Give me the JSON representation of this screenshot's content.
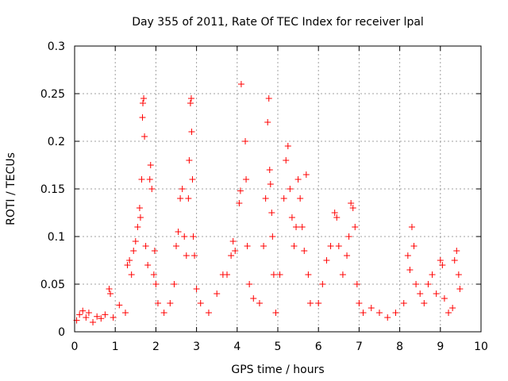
{
  "chart_data": {
    "type": "scatter",
    "title": "Day 355 of 2011, Rate Of TEC Index for receiver lpal",
    "xlabel": "GPS time / hours",
    "ylabel": "ROTI / TECUs",
    "xlim": [
      0,
      10
    ],
    "ylim": [
      0,
      0.3
    ],
    "xticks": [
      "0",
      "1",
      "2",
      "3",
      "4",
      "5",
      "6",
      "7",
      "8",
      "9",
      "10"
    ],
    "yticks": [
      "0",
      "0.05",
      "0.1",
      "0.15",
      "0.2",
      "0.25",
      "0.3"
    ],
    "grid": true,
    "marker": "+",
    "color": "#ff0000",
    "series": [
      {
        "name": "ROTI",
        "points": [
          [
            0.05,
            0.012
          ],
          [
            0.12,
            0.018
          ],
          [
            0.2,
            0.022
          ],
          [
            0.28,
            0.015
          ],
          [
            0.35,
            0.02
          ],
          [
            0.45,
            0.01
          ],
          [
            0.55,
            0.016
          ],
          [
            0.65,
            0.014
          ],
          [
            0.75,
            0.018
          ],
          [
            0.85,
            0.045
          ],
          [
            0.88,
            0.04
          ],
          [
            0.95,
            0.015
          ],
          [
            1.1,
            0.028
          ],
          [
            1.25,
            0.02
          ],
          [
            1.3,
            0.07
          ],
          [
            1.35,
            0.075
          ],
          [
            1.4,
            0.06
          ],
          [
            1.45,
            0.085
          ],
          [
            1.5,
            0.095
          ],
          [
            1.55,
            0.11
          ],
          [
            1.6,
            0.13
          ],
          [
            1.62,
            0.12
          ],
          [
            1.65,
            0.16
          ],
          [
            1.67,
            0.225
          ],
          [
            1.68,
            0.24
          ],
          [
            1.7,
            0.245
          ],
          [
            1.72,
            0.205
          ],
          [
            1.75,
            0.09
          ],
          [
            1.8,
            0.07
          ],
          [
            1.85,
            0.16
          ],
          [
            1.87,
            0.175
          ],
          [
            1.9,
            0.15
          ],
          [
            1.95,
            0.06
          ],
          [
            1.97,
            0.085
          ],
          [
            2.0,
            0.05
          ],
          [
            2.05,
            0.03
          ],
          [
            2.2,
            0.02
          ],
          [
            2.35,
            0.03
          ],
          [
            2.45,
            0.05
          ],
          [
            2.5,
            0.09
          ],
          [
            2.55,
            0.105
          ],
          [
            2.6,
            0.14
          ],
          [
            2.65,
            0.15
          ],
          [
            2.7,
            0.1
          ],
          [
            2.75,
            0.08
          ],
          [
            2.8,
            0.14
          ],
          [
            2.82,
            0.18
          ],
          [
            2.85,
            0.24
          ],
          [
            2.87,
            0.245
          ],
          [
            2.88,
            0.21
          ],
          [
            2.9,
            0.16
          ],
          [
            2.92,
            0.1
          ],
          [
            2.95,
            0.08
          ],
          [
            3.0,
            0.045
          ],
          [
            3.1,
            0.03
          ],
          [
            3.3,
            0.02
          ],
          [
            3.5,
            0.04
          ],
          [
            3.65,
            0.06
          ],
          [
            3.75,
            0.06
          ],
          [
            3.85,
            0.08
          ],
          [
            3.9,
            0.095
          ],
          [
            3.95,
            0.085
          ],
          [
            4.05,
            0.135
          ],
          [
            4.08,
            0.148
          ],
          [
            4.1,
            0.26
          ],
          [
            4.2,
            0.2
          ],
          [
            4.22,
            0.16
          ],
          [
            4.25,
            0.09
          ],
          [
            4.3,
            0.05
          ],
          [
            4.4,
            0.035
          ],
          [
            4.55,
            0.03
          ],
          [
            4.65,
            0.09
          ],
          [
            4.7,
            0.14
          ],
          [
            4.75,
            0.22
          ],
          [
            4.78,
            0.245
          ],
          [
            4.8,
            0.17
          ],
          [
            4.82,
            0.155
          ],
          [
            4.85,
            0.125
          ],
          [
            4.87,
            0.1
          ],
          [
            4.9,
            0.06
          ],
          [
            4.95,
            0.02
          ],
          [
            5.05,
            0.06
          ],
          [
            5.15,
            0.14
          ],
          [
            5.2,
            0.18
          ],
          [
            5.25,
            0.195
          ],
          [
            5.3,
            0.15
          ],
          [
            5.35,
            0.12
          ],
          [
            5.4,
            0.09
          ],
          [
            5.45,
            0.11
          ],
          [
            5.5,
            0.16
          ],
          [
            5.55,
            0.14
          ],
          [
            5.6,
            0.11
          ],
          [
            5.65,
            0.085
          ],
          [
            5.7,
            0.165
          ],
          [
            5.75,
            0.06
          ],
          [
            5.8,
            0.03
          ],
          [
            6.0,
            0.03
          ],
          [
            6.1,
            0.05
          ],
          [
            6.2,
            0.075
          ],
          [
            6.3,
            0.09
          ],
          [
            6.4,
            0.125
          ],
          [
            6.45,
            0.12
          ],
          [
            6.5,
            0.09
          ],
          [
            6.6,
            0.06
          ],
          [
            6.7,
            0.08
          ],
          [
            6.75,
            0.1
          ],
          [
            6.8,
            0.135
          ],
          [
            6.85,
            0.13
          ],
          [
            6.9,
            0.11
          ],
          [
            6.95,
            0.05
          ],
          [
            7.0,
            0.03
          ],
          [
            7.1,
            0.02
          ],
          [
            7.3,
            0.025
          ],
          [
            7.5,
            0.02
          ],
          [
            7.7,
            0.015
          ],
          [
            7.9,
            0.02
          ],
          [
            8.1,
            0.03
          ],
          [
            8.2,
            0.08
          ],
          [
            8.25,
            0.065
          ],
          [
            8.3,
            0.11
          ],
          [
            8.35,
            0.09
          ],
          [
            8.4,
            0.05
          ],
          [
            8.5,
            0.04
          ],
          [
            8.6,
            0.03
          ],
          [
            8.7,
            0.05
          ],
          [
            8.8,
            0.06
          ],
          [
            8.9,
            0.04
          ],
          [
            9.0,
            0.075
          ],
          [
            9.05,
            0.07
          ],
          [
            9.1,
            0.035
          ],
          [
            9.2,
            0.02
          ],
          [
            9.3,
            0.025
          ],
          [
            9.35,
            0.075
          ],
          [
            9.4,
            0.085
          ],
          [
            9.45,
            0.06
          ],
          [
            9.48,
            0.045
          ]
        ]
      }
    ]
  }
}
